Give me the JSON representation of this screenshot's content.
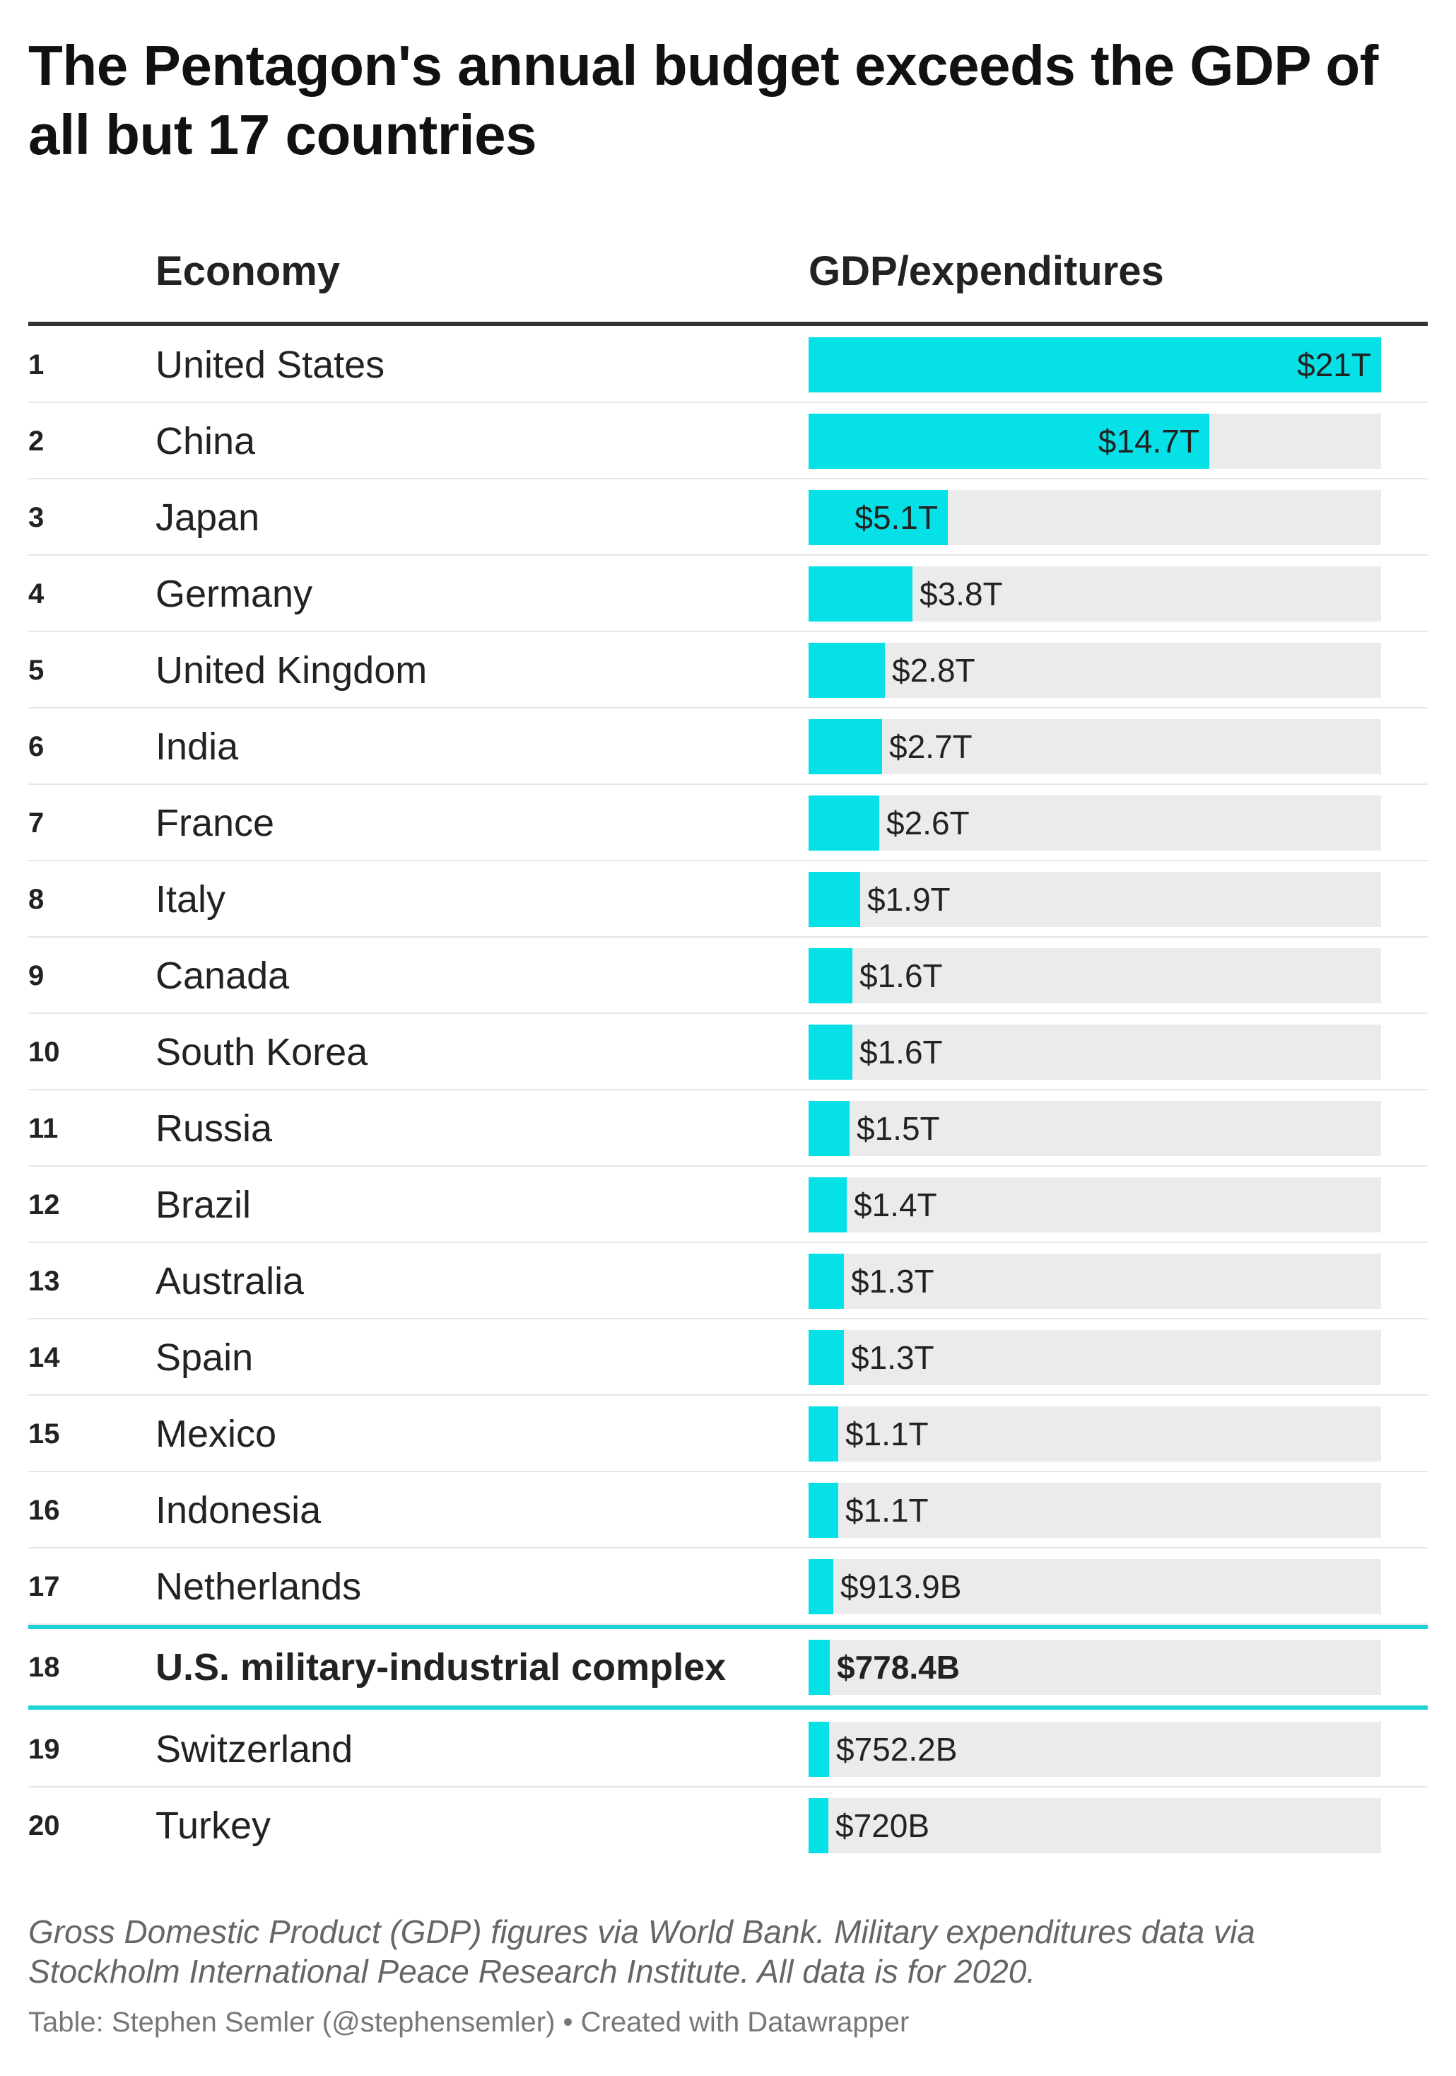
{
  "title": "The Pentagon's annual budget exceeds the GDP of all but 17 countries",
  "columns": {
    "economy": "Economy",
    "gdp": "GDP/expenditures"
  },
  "colors": {
    "bar": "#05e1e6",
    "track": "#ebebeb",
    "highlight_line": "#1fd2d6",
    "header_rule": "#333333"
  },
  "chart_data": {
    "type": "table",
    "value_unit": "USD",
    "max_value": 21000000000000,
    "highlight_rank": 18,
    "rows": [
      {
        "rank": "1",
        "economy": "United States",
        "value": 21000000000000,
        "label": "$21T"
      },
      {
        "rank": "2",
        "economy": "China",
        "value": 14700000000000,
        "label": "$14.7T"
      },
      {
        "rank": "3",
        "economy": "Japan",
        "value": 5100000000000,
        "label": "$5.1T"
      },
      {
        "rank": "4",
        "economy": "Germany",
        "value": 3800000000000,
        "label": "$3.8T"
      },
      {
        "rank": "5",
        "economy": "United Kingdom",
        "value": 2800000000000,
        "label": "$2.8T"
      },
      {
        "rank": "6",
        "economy": "India",
        "value": 2700000000000,
        "label": "$2.7T"
      },
      {
        "rank": "7",
        "economy": "France",
        "value": 2600000000000,
        "label": "$2.6T"
      },
      {
        "rank": "8",
        "economy": "Italy",
        "value": 1900000000000,
        "label": "$1.9T"
      },
      {
        "rank": "9",
        "economy": "Canada",
        "value": 1600000000000,
        "label": "$1.6T"
      },
      {
        "rank": "10",
        "economy": "South Korea",
        "value": 1600000000000,
        "label": "$1.6T"
      },
      {
        "rank": "11",
        "economy": "Russia",
        "value": 1500000000000,
        "label": "$1.5T"
      },
      {
        "rank": "12",
        "economy": "Brazil",
        "value": 1400000000000,
        "label": "$1.4T"
      },
      {
        "rank": "13",
        "economy": "Australia",
        "value": 1300000000000,
        "label": "$1.3T"
      },
      {
        "rank": "14",
        "economy": "Spain",
        "value": 1300000000000,
        "label": "$1.3T"
      },
      {
        "rank": "15",
        "economy": "Mexico",
        "value": 1100000000000,
        "label": "$1.1T"
      },
      {
        "rank": "16",
        "economy": "Indonesia",
        "value": 1100000000000,
        "label": "$1.1T"
      },
      {
        "rank": "17",
        "economy": "Netherlands",
        "value": 913900000000,
        "label": "$913.9B"
      },
      {
        "rank": "18",
        "economy": "U.S. military-industrial complex",
        "value": 778400000000,
        "label": "$778.4B"
      },
      {
        "rank": "19",
        "economy": "Switzerland",
        "value": 752200000000,
        "label": "$752.2B"
      },
      {
        "rank": "20",
        "economy": "Turkey",
        "value": 720000000000,
        "label": "$720B"
      }
    ]
  },
  "notes": "Gross Domestic Product (GDP) figures via World Bank. Military expenditures data via Stockholm International Peace Research Institute. All data is for 2020.",
  "credit": "Table: Stephen Semler (@stephensemler) • Created with Datawrapper"
}
